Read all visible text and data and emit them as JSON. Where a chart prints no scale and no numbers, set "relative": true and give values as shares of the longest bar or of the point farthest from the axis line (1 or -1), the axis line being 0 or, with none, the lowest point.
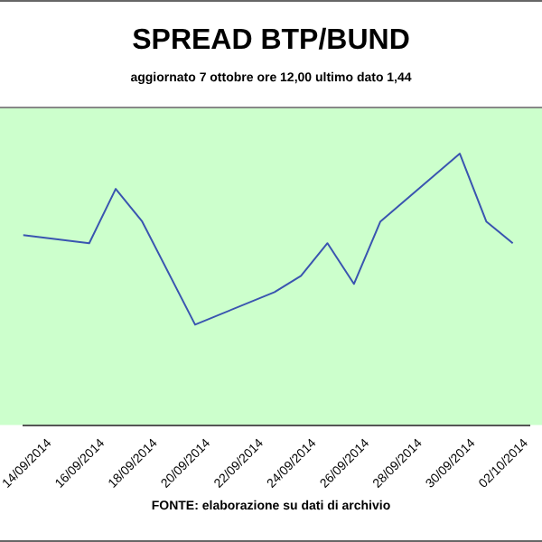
{
  "chart_data": {
    "type": "line",
    "title": "SPREAD BTP/BUND",
    "subtitle": "aggiornato 7 ottobre ore 12,00 ultimo dato 1,44",
    "x": [
      "2014-09-13T00:00",
      "2014-09-15T12:00",
      "2014-09-16T12:00",
      "2014-09-17T12:00",
      "2014-09-19T12:00",
      "2014-09-22T12:00",
      "2014-09-23T12:00",
      "2014-09-24T12:00",
      "2014-09-25T12:00",
      "2014-09-26T12:00",
      "2014-09-29T12:00",
      "2014-09-30T12:00",
      "2014-10-01T12:00"
    ],
    "series": [
      {
        "color": "#3a55b0",
        "values": [
          0.7,
          0.67,
          0.87,
          0.75,
          0.37,
          0.49,
          0.55,
          0.67,
          0.52,
          0.75,
          1.0,
          0.75,
          0.67
        ]
      }
    ],
    "relative": true,
    "xlim": [
      "2014-09-13T00:00",
      "2014-10-02T03:00"
    ],
    "xticks": [
      {
        "value": "2014-09-14",
        "label": "14/09/2014"
      },
      {
        "value": "2014-09-16",
        "label": "16/09/2014"
      },
      {
        "value": "2014-09-18",
        "label": "18/09/2014"
      },
      {
        "value": "2014-09-20",
        "label": "20/09/2014"
      },
      {
        "value": "2014-09-22",
        "label": "22/09/2014"
      },
      {
        "value": "2014-09-24",
        "label": "24/09/2014"
      },
      {
        "value": "2014-09-26",
        "label": "26/09/2014"
      },
      {
        "value": "2014-09-28",
        "label": "28/09/2014"
      },
      {
        "value": "2014-09-30",
        "label": "30/09/2014"
      },
      {
        "value": "2014-10-02",
        "label": "02/10/2014"
      }
    ],
    "marker": "none",
    "line_style": "solid",
    "legend": false,
    "annotations": [
      "FONTE: elaborazione su dati di archivio"
    ]
  }
}
